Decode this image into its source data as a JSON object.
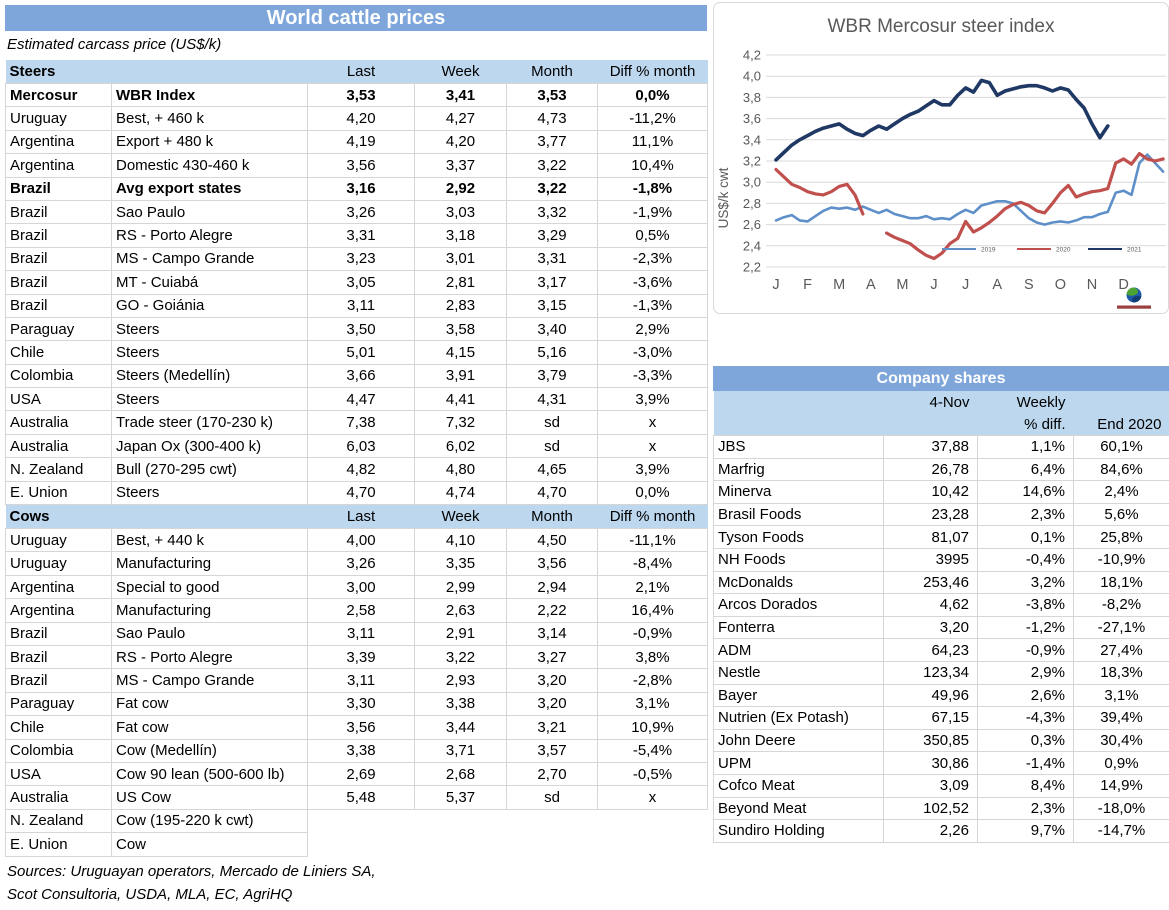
{
  "cattle": {
    "title": "World cattle prices",
    "subtitle": "Estimated carcass price (US$/k)",
    "col_headers": [
      "Last",
      "Week",
      "Month",
      "Diff % month"
    ],
    "steers_label": "Steers",
    "cows_label": "Cows",
    "steers_rows": [
      {
        "region": "Mercosur",
        "desc": "WBR Index",
        "last": "3,53",
        "week": "3,41",
        "month": "3,53",
        "diff": "0,0%",
        "bold": true
      },
      {
        "region": "Uruguay",
        "desc": "Best, + 460 k",
        "last": "4,20",
        "week": "4,27",
        "month": "4,73",
        "diff": "-11,2%"
      },
      {
        "region": "Argentina",
        "desc": "Export + 480 k",
        "last": "4,19",
        "week": "4,20",
        "month": "3,77",
        "diff": "11,1%"
      },
      {
        "region": "Argentina",
        "desc": "Domestic 430-460 k",
        "last": "3,56",
        "week": "3,37",
        "month": "3,22",
        "diff": "10,4%"
      },
      {
        "region": "Brazil",
        "desc": "Avg export states",
        "last": "3,16",
        "week": "2,92",
        "month": "3,22",
        "diff": "-1,8%",
        "bold": true
      },
      {
        "region": "Brazil",
        "desc": "Sao Paulo",
        "last": "3,26",
        "week": "3,03",
        "month": "3,32",
        "diff": "-1,9%"
      },
      {
        "region": "Brazil",
        "desc": "RS - Porto Alegre",
        "last": "3,31",
        "week": "3,18",
        "month": "3,29",
        "diff": "0,5%"
      },
      {
        "region": "Brazil",
        "desc": "MS - Campo Grande",
        "last": "3,23",
        "week": "3,01",
        "month": "3,31",
        "diff": "-2,3%"
      },
      {
        "region": "Brazil",
        "desc": "MT - Cuiabá",
        "last": "3,05",
        "week": "2,81",
        "month": "3,17",
        "diff": "-3,6%"
      },
      {
        "region": "Brazil",
        "desc": "GO - Goiánia",
        "last": "3,11",
        "week": "2,83",
        "month": "3,15",
        "diff": "-1,3%"
      },
      {
        "region": "Paraguay",
        "desc": "Steers",
        "last": "3,50",
        "week": "3,58",
        "month": "3,40",
        "diff": "2,9%"
      },
      {
        "region": "Chile",
        "desc": "Steers",
        "last": "5,01",
        "week": "4,15",
        "month": "5,16",
        "diff": "-3,0%"
      },
      {
        "region": "Colombia",
        "desc": "Steers (Medellín)",
        "last": "3,66",
        "week": "3,91",
        "month": "3,79",
        "diff": "-3,3%"
      },
      {
        "region": "USA",
        "desc": "Steers",
        "last": "4,47",
        "week": "4,41",
        "month": "4,31",
        "diff": "3,9%"
      },
      {
        "region": "Australia",
        "desc": "Trade steer (170-230 k)",
        "last": "7,38",
        "week": "7,32",
        "month": "sd",
        "diff": "x"
      },
      {
        "region": "Australia",
        "desc": "Japan Ox (300-400 k)",
        "last": "6,03",
        "week": "6,02",
        "month": "sd",
        "diff": "x"
      },
      {
        "region": "N. Zealand",
        "desc": "Bull (270-295 cwt)",
        "last": "4,82",
        "week": "4,80",
        "month": "4,65",
        "diff": "3,9%"
      },
      {
        "region": "E. Union",
        "desc": "Steers",
        "last": "4,70",
        "week": "4,74",
        "month": "4,70",
        "diff": "0,0%"
      }
    ],
    "cows_rows": [
      {
        "region": "Uruguay",
        "desc": "Best, + 440 k",
        "last": "4,00",
        "week": "4,10",
        "month": "4,50",
        "diff": "-11,1%"
      },
      {
        "region": "Uruguay",
        "desc": "Manufacturing",
        "last": "3,26",
        "week": "3,35",
        "month": "3,56",
        "diff": "-8,4%"
      },
      {
        "region": "Argentina",
        "desc": "Special to good",
        "last": "3,00",
        "week": "2,99",
        "month": "2,94",
        "diff": "2,1%"
      },
      {
        "region": "Argentina",
        "desc": "Manufacturing",
        "last": "2,58",
        "week": "2,63",
        "month": "2,22",
        "diff": "16,4%"
      },
      {
        "region": "Brazil",
        "desc": "Sao Paulo",
        "last": "3,11",
        "week": "2,91",
        "month": "3,14",
        "diff": "-0,9%"
      },
      {
        "region": "Brazil",
        "desc": "RS - Porto Alegre",
        "last": "3,39",
        "week": "3,22",
        "month": "3,27",
        "diff": "3,8%"
      },
      {
        "region": "Brazil",
        "desc": "MS - Campo Grande",
        "last": "3,11",
        "week": "2,93",
        "month": "3,20",
        "diff": "-2,8%"
      },
      {
        "region": "Paraguay",
        "desc": "Fat cow",
        "last": "3,30",
        "week": "3,38",
        "month": "3,20",
        "diff": "3,1%"
      },
      {
        "region": "Chile",
        "desc": "Fat cow",
        "last": "3,56",
        "week": "3,44",
        "month": "3,21",
        "diff": "10,9%"
      },
      {
        "region": "Colombia",
        "desc": "Cow (Medellín)",
        "last": "3,38",
        "week": "3,71",
        "month": "3,57",
        "diff": "-5,4%"
      },
      {
        "region": "USA",
        "desc": "Cow 90 lean (500-600 lb)",
        "last": "2,69",
        "week": "2,68",
        "month": "2,70",
        "diff": "-0,5%"
      },
      {
        "region": "Australia",
        "desc": "US Cow",
        "last": "5,48",
        "week": "5,37",
        "month": "sd",
        "diff": "x"
      },
      {
        "region": "N. Zealand",
        "desc": "Cow (195-220 k cwt)",
        "partial": true
      },
      {
        "region": "E. Union",
        "desc": "Cow",
        "partial": true
      }
    ],
    "sources_line1": "Sources: Uruguayan operators, Mercado de Liniers SA,",
    "sources_line2": "Scot Consultoria, USDA, MLA, EC, AgriHQ"
  },
  "chart_data": {
    "type": "line",
    "title": "WBR Mercosur steer index",
    "ylabel": "US$/k cwt",
    "ylim": [
      2.2,
      4.2
    ],
    "ytick_step": 0.2,
    "grid": true,
    "legend_position": "inside-right",
    "x_months": [
      "J",
      "F",
      "M",
      "A",
      "M",
      "J",
      "J",
      "A",
      "S",
      "O",
      "N",
      "D"
    ],
    "series": [
      {
        "name": "2019",
        "color": "#5E8FC9",
        "width": 2.6,
        "segments": [
          {
            "x_start": 0,
            "x_step": 0.25,
            "values": [
              2.64,
              2.67,
              2.69,
              2.64,
              2.63,
              2.68,
              2.73,
              2.76,
              2.75,
              2.76,
              2.74,
              2.77,
              2.74,
              2.71,
              2.74,
              2.7,
              2.68,
              2.66,
              2.66,
              2.68,
              2.65,
              2.66,
              2.65,
              2.7,
              2.74,
              2.71,
              2.78,
              2.8,
              2.82,
              2.82,
              2.8,
              2.73,
              2.66,
              2.62,
              2.6,
              2.62,
              2.63,
              2.62,
              2.64,
              2.67,
              2.67,
              2.7,
              2.72,
              2.9,
              2.92,
              2.88,
              3.18,
              3.26,
              3.18,
              3.1
            ]
          }
        ]
      },
      {
        "name": "2020",
        "color": "#C0504D",
        "width": 3.2,
        "segments": [
          {
            "x_start": 0,
            "x_step": 0.25,
            "values": [
              3.12,
              3.05,
              2.98,
              2.95,
              2.91,
              2.89,
              2.88,
              2.91,
              2.96,
              2.98,
              2.88,
              2.7
            ]
          },
          {
            "x_start": 3.5,
            "x_step": 0.25,
            "values": [
              2.52,
              2.48,
              2.45,
              2.42,
              2.36,
              2.31,
              2.28,
              2.33,
              2.42,
              2.47,
              2.63,
              2.53,
              2.57,
              2.62,
              2.68,
              2.75,
              2.79,
              2.81,
              2.78,
              2.73,
              2.71,
              2.8,
              2.9,
              2.97,
              2.86,
              2.89,
              2.91,
              2.92,
              2.94,
              3.18,
              3.22,
              3.17,
              3.27,
              3.22,
              3.2,
              3.22
            ]
          }
        ]
      },
      {
        "name": "2021",
        "color": "#1F3864",
        "width": 3.6,
        "segments": [
          {
            "x_start": 0,
            "x_step": 0.25,
            "values": [
              3.21,
              3.28,
              3.35,
              3.4,
              3.44,
              3.48,
              3.51,
              3.53,
              3.55,
              3.5,
              3.46,
              3.44,
              3.49,
              3.53,
              3.5,
              3.55,
              3.6,
              3.64,
              3.67,
              3.72,
              3.77,
              3.73,
              3.73,
              3.82,
              3.89,
              3.85,
              3.96,
              3.94,
              3.82,
              3.86,
              3.88,
              3.9,
              3.91,
              3.91,
              3.89,
              3.86,
              3.89,
              3.87,
              3.78,
              3.7,
              3.55,
              3.42,
              3.53
            ]
          }
        ]
      }
    ],
    "legend": [
      "2019",
      "2020",
      "2021"
    ]
  },
  "shares": {
    "title": "Company shares",
    "header": {
      "date": "4-Nov",
      "weekly": "Weekly",
      "pct_diff": "% diff.",
      "end": "End 2020"
    },
    "rows": [
      {
        "name": "JBS",
        "price": "37,88",
        "weekly": "1,1%",
        "end": "60,1%"
      },
      {
        "name": "Marfrig",
        "price": "26,78",
        "weekly": "6,4%",
        "end": "84,6%"
      },
      {
        "name": "Minerva",
        "price": "10,42",
        "weekly": "14,6%",
        "end": "2,4%"
      },
      {
        "name": "Brasil Foods",
        "price": "23,28",
        "weekly": "2,3%",
        "end": "5,6%"
      },
      {
        "name": "Tyson Foods",
        "price": "81,07",
        "weekly": "0,1%",
        "end": "25,8%"
      },
      {
        "name": "NH Foods",
        "price": "3995",
        "weekly": "-0,4%",
        "end": "-10,9%"
      },
      {
        "name": "McDonalds",
        "price": "253,46",
        "weekly": "3,2%",
        "end": "18,1%"
      },
      {
        "name": "Arcos Dorados",
        "price": "4,62",
        "weekly": "-3,8%",
        "end": "-8,2%"
      },
      {
        "name": "Fonterra",
        "price": "3,20",
        "weekly": "-1,2%",
        "end": "-27,1%"
      },
      {
        "name": "ADM",
        "price": "64,23",
        "weekly": "-0,9%",
        "end": "27,4%"
      },
      {
        "name": "Nestle",
        "price": "123,34",
        "weekly": "2,9%",
        "end": "18,3%"
      },
      {
        "name": "Bayer",
        "price": "49,96",
        "weekly": "2,6%",
        "end": "3,1%"
      },
      {
        "name": "Nutrien (Ex Potash)",
        "price": "67,15",
        "weekly": "-4,3%",
        "end": "39,4%"
      },
      {
        "name": "John Deere",
        "price": "350,85",
        "weekly": "0,3%",
        "end": "30,4%"
      },
      {
        "name": "UPM",
        "price": "30,86",
        "weekly": "-1,4%",
        "end": "0,9%"
      },
      {
        "name": "Cofco Meat",
        "price": "3,09",
        "weekly": "8,4%",
        "end": "14,9%"
      },
      {
        "name": "Beyond Meat",
        "price": "102,52",
        "weekly": "2,3%",
        "end": "-18,0%"
      },
      {
        "name": "Sundiro Holding",
        "price": "2,26",
        "weekly": "9,7%",
        "end": "-14,7%"
      }
    ]
  },
  "colors": {
    "band_blue": "#7EA6DA",
    "band_light_blue": "#BDD7EE",
    "grid_gray": "#D9D9D9",
    "axis_text_gray": "#595959",
    "series_2019": "#5E8FC9",
    "series_2020": "#C0504D",
    "series_2021": "#1F3864"
  }
}
